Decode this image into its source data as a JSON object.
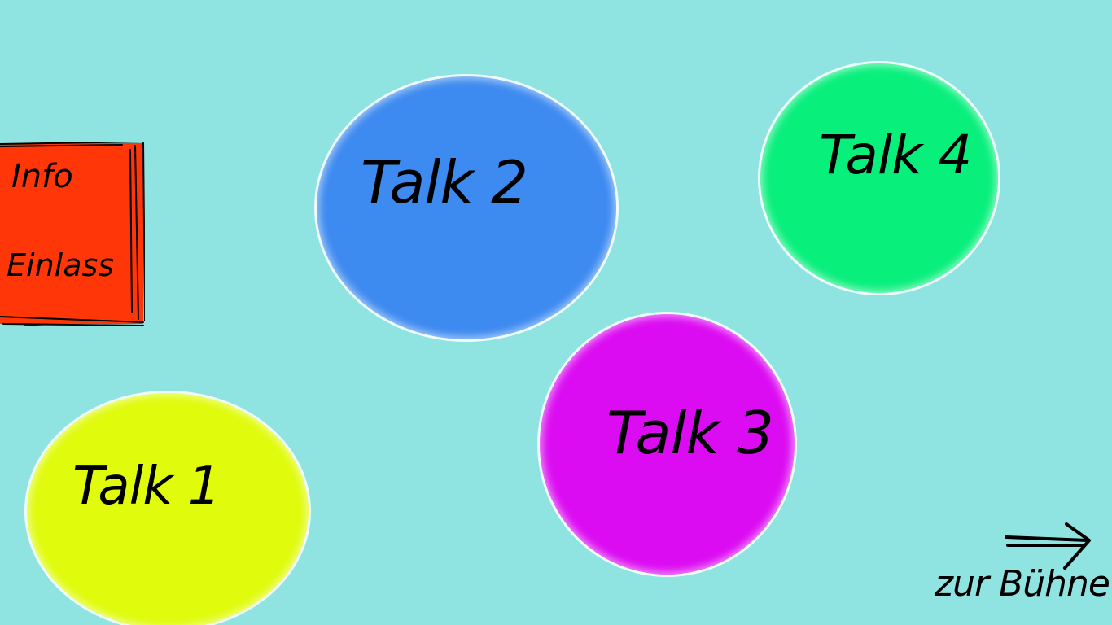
{
  "colors": {
    "background": "#8fe3e0",
    "talk_1": "#e0fb0c",
    "talk_2": "#3d8af0",
    "talk_3": "#dc0cf2",
    "talk_4": "#08ef7c",
    "info": "#ff3708",
    "ink": "#000000"
  },
  "rooms": [
    {
      "label": "Talk 1"
    },
    {
      "label": "Talk 2"
    },
    {
      "label": "Talk 3"
    },
    {
      "label": "Talk 4"
    }
  ],
  "info": {
    "line1": "Info",
    "line2": "Einlass"
  },
  "stage": {
    "label": "zur Bühne",
    "icon": "arrow-right-icon"
  }
}
